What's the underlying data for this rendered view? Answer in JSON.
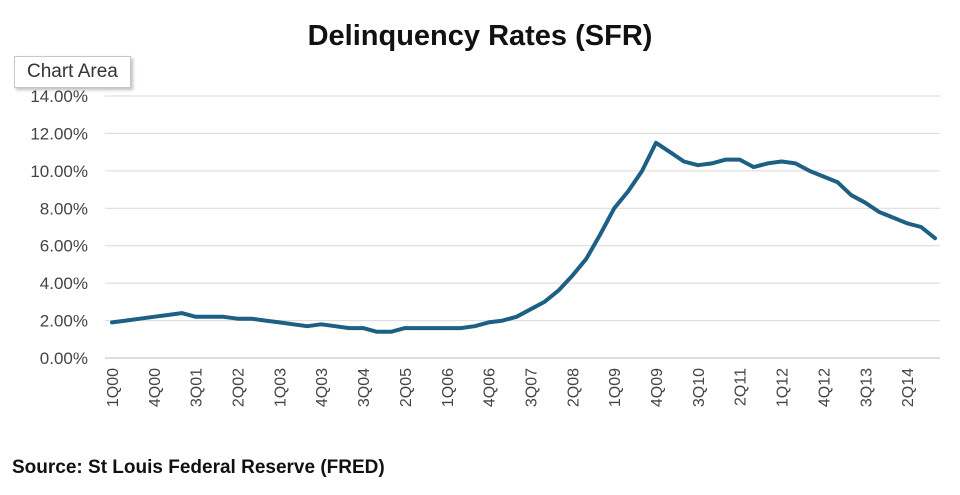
{
  "chart_data": {
    "type": "line",
    "title": "Delinquency Rates (SFR)",
    "source": "Source: St Louis Federal Reserve (FRED)",
    "tooltip": "Chart Area",
    "ylim": [
      0,
      14
    ],
    "y_tick_values": [
      0,
      2,
      4,
      6,
      8,
      10,
      12,
      14
    ],
    "y_tick_labels": [
      "0.00%",
      "2.00%",
      "4.00%",
      "6.00%",
      "8.00%",
      "10.00%",
      "12.00%",
      "14.00%"
    ],
    "x_tick_labels": [
      "1Q00",
      "4Q00",
      "3Q01",
      "2Q02",
      "1Q03",
      "4Q03",
      "3Q04",
      "2Q05",
      "1Q06",
      "4Q06",
      "3Q07",
      "2Q08",
      "1Q09",
      "4Q09",
      "3Q10",
      "2Q11",
      "1Q12",
      "4Q12",
      "3Q13",
      "2Q14"
    ],
    "grid": true,
    "line_color": "#1e5f84",
    "series": [
      {
        "x": [
          "1Q00",
          "2Q00",
          "3Q00",
          "4Q00",
          "1Q01",
          "2Q01",
          "3Q01",
          "4Q01",
          "1Q02",
          "2Q02",
          "3Q02",
          "4Q02",
          "1Q03",
          "2Q03",
          "3Q03",
          "4Q03",
          "1Q04",
          "2Q04",
          "3Q04",
          "4Q04",
          "1Q05",
          "2Q05",
          "3Q05",
          "4Q05",
          "1Q06",
          "2Q06",
          "3Q06",
          "4Q06",
          "1Q07",
          "2Q07",
          "3Q07",
          "4Q07",
          "1Q08",
          "2Q08",
          "3Q08",
          "4Q08",
          "1Q09",
          "2Q09",
          "3Q09",
          "4Q09",
          "1Q10",
          "2Q10",
          "3Q10",
          "4Q10",
          "1Q11",
          "2Q11",
          "3Q11",
          "4Q11",
          "1Q12",
          "2Q12",
          "3Q12",
          "4Q12",
          "1Q13",
          "2Q13",
          "3Q13",
          "4Q13",
          "1Q14",
          "2Q14",
          "3Q14",
          "4Q14"
        ],
        "values": [
          1.9,
          2.0,
          2.1,
          2.2,
          2.3,
          2.4,
          2.2,
          2.2,
          2.2,
          2.1,
          2.1,
          2.0,
          1.9,
          1.8,
          1.7,
          1.8,
          1.7,
          1.6,
          1.6,
          1.4,
          1.4,
          1.6,
          1.6,
          1.6,
          1.6,
          1.6,
          1.7,
          1.9,
          2.0,
          2.2,
          2.6,
          3.0,
          3.6,
          4.4,
          5.3,
          6.6,
          8.0,
          8.9,
          10.0,
          11.5,
          11.0,
          10.5,
          10.3,
          10.4,
          10.6,
          10.6,
          10.2,
          10.4,
          10.5,
          10.4,
          10.0,
          9.7,
          9.4,
          8.7,
          8.3,
          7.8,
          7.5,
          7.2,
          7.0,
          6.4
        ]
      }
    ]
  }
}
